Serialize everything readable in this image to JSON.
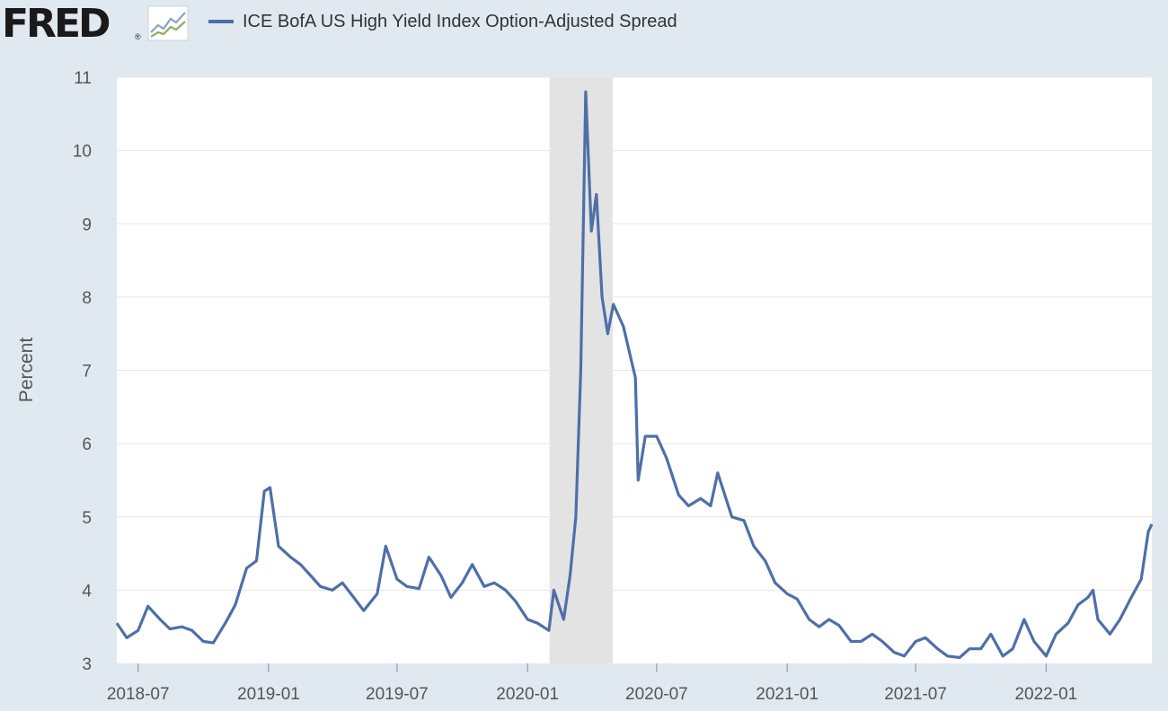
{
  "header": {
    "logo_text": "FRED",
    "logo_reg": "®",
    "legend_label": "ICE BofA US High Yield Index Option-Adjusted Spread"
  },
  "colors": {
    "background": "#e1e9f0",
    "plot_background": "#ffffff",
    "series": "#4e6fa8",
    "recession": "#e3e3e3",
    "grid": "#e6e6e6"
  },
  "chart_data": {
    "type": "line",
    "title": "",
    "xlabel": "",
    "ylabel": "Percent",
    "ylim": [
      3,
      11
    ],
    "xlim": [
      "2018-06-01",
      "2022-05-30"
    ],
    "y_ticks": [
      3,
      4,
      5,
      6,
      7,
      8,
      9,
      10,
      11
    ],
    "x_ticks": [
      "2018-07",
      "2019-01",
      "2019-07",
      "2020-01",
      "2020-07",
      "2021-01",
      "2021-07",
      "2022-01"
    ],
    "grid": true,
    "legend_position": "top-left",
    "recession_shading": [
      [
        "2020-02-01",
        "2020-04-30"
      ]
    ],
    "series": [
      {
        "name": "ICE BofA US High Yield Index Option-Adjusted Spread",
        "x": [
          "2018-06-01",
          "2018-06-15",
          "2018-07-01",
          "2018-07-15",
          "2018-08-01",
          "2018-08-15",
          "2018-09-01",
          "2018-09-15",
          "2018-10-01",
          "2018-10-15",
          "2018-11-01",
          "2018-11-15",
          "2018-12-01",
          "2018-12-15",
          "2018-12-26",
          "2019-01-03",
          "2019-01-15",
          "2019-02-01",
          "2019-02-15",
          "2019-03-01",
          "2019-03-15",
          "2019-04-01",
          "2019-04-15",
          "2019-05-01",
          "2019-05-15",
          "2019-06-03",
          "2019-06-15",
          "2019-07-01",
          "2019-07-15",
          "2019-08-01",
          "2019-08-15",
          "2019-09-01",
          "2019-09-15",
          "2019-10-01",
          "2019-10-15",
          "2019-11-01",
          "2019-11-15",
          "2019-12-01",
          "2019-12-15",
          "2020-01-01",
          "2020-01-15",
          "2020-01-31",
          "2020-02-07",
          "2020-02-21",
          "2020-03-01",
          "2020-03-09",
          "2020-03-16",
          "2020-03-23",
          "2020-03-31",
          "2020-04-07",
          "2020-04-15",
          "2020-04-23",
          "2020-05-01",
          "2020-05-15",
          "2020-06-01",
          "2020-06-05",
          "2020-06-15",
          "2020-07-01",
          "2020-07-15",
          "2020-08-01",
          "2020-08-15",
          "2020-09-01",
          "2020-09-15",
          "2020-09-25",
          "2020-10-15",
          "2020-11-01",
          "2020-11-15",
          "2020-12-01",
          "2020-12-15",
          "2021-01-01",
          "2021-01-15",
          "2021-02-01",
          "2021-02-15",
          "2021-03-01",
          "2021-03-15",
          "2021-04-01",
          "2021-04-15",
          "2021-05-01",
          "2021-05-15",
          "2021-06-01",
          "2021-06-15",
          "2021-07-01",
          "2021-07-15",
          "2021-08-01",
          "2021-08-15",
          "2021-09-01",
          "2021-09-15",
          "2021-10-01",
          "2021-10-15",
          "2021-11-01",
          "2021-11-15",
          "2021-12-01",
          "2021-12-15",
          "2022-01-01",
          "2022-01-15",
          "2022-02-01",
          "2022-02-15",
          "2022-03-01",
          "2022-03-08",
          "2022-03-15",
          "2022-04-01",
          "2022-04-15",
          "2022-05-01",
          "2022-05-15",
          "2022-05-25",
          "2022-05-30"
        ],
        "values": [
          3.55,
          3.35,
          3.45,
          3.78,
          3.6,
          3.47,
          3.5,
          3.45,
          3.3,
          3.28,
          3.55,
          3.8,
          4.3,
          4.4,
          5.35,
          5.4,
          4.6,
          4.45,
          4.35,
          4.2,
          4.05,
          4.0,
          4.1,
          3.9,
          3.72,
          3.95,
          4.6,
          4.15,
          4.05,
          4.02,
          4.45,
          4.2,
          3.9,
          4.1,
          4.35,
          4.05,
          4.1,
          4.0,
          3.85,
          3.6,
          3.55,
          3.45,
          4.0,
          3.6,
          4.2,
          5.0,
          7.0,
          10.8,
          8.9,
          9.4,
          8.0,
          7.5,
          7.9,
          7.6,
          6.9,
          5.5,
          6.1,
          6.1,
          5.8,
          5.3,
          5.15,
          5.25,
          5.15,
          5.6,
          5.0,
          4.95,
          4.6,
          4.4,
          4.1,
          3.95,
          3.88,
          3.6,
          3.5,
          3.6,
          3.52,
          3.3,
          3.3,
          3.4,
          3.3,
          3.15,
          3.1,
          3.3,
          3.35,
          3.2,
          3.1,
          3.08,
          3.2,
          3.2,
          3.4,
          3.1,
          3.2,
          3.6,
          3.3,
          3.1,
          3.4,
          3.55,
          3.8,
          3.9,
          4.0,
          3.6,
          3.4,
          3.6,
          3.9,
          4.15,
          4.8,
          4.9
        ]
      }
    ]
  }
}
